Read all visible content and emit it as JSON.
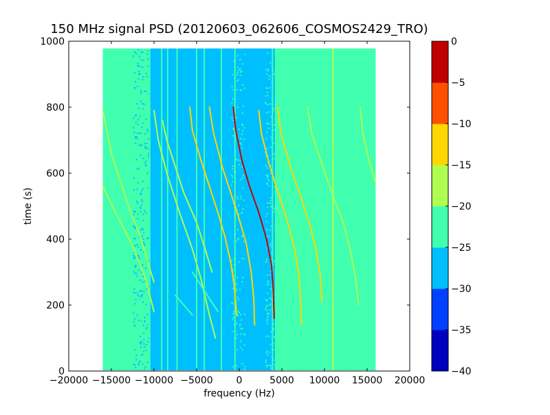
{
  "chart_data": {
    "type": "heatmap",
    "title": "150 MHz signal PSD (20120603_062606_COSMOS2429_TRO)",
    "xlabel": "frequency (Hz)",
    "ylabel": "time (s)",
    "xlim": [
      -20000,
      20000
    ],
    "ylim": [
      0,
      1000
    ],
    "x_ticks": [
      -20000,
      -15000,
      -10000,
      -5000,
      0,
      5000,
      10000,
      15000,
      20000
    ],
    "x_tick_labels": [
      "−20000",
      "−15000",
      "−10000",
      "−5000",
      "0",
      "5000",
      "10000",
      "15000",
      "20000"
    ],
    "y_ticks": [
      0,
      200,
      400,
      600,
      800,
      1000
    ],
    "y_tick_labels": [
      "0",
      "200",
      "400",
      "600",
      "800",
      "1000"
    ],
    "data_extent": {
      "x": [
        -16000,
        16000
      ],
      "y": [
        0,
        978
      ]
    },
    "colorbar": {
      "levels": [
        -40,
        -35,
        -30,
        -25,
        -20,
        -15,
        -10,
        -5,
        0
      ],
      "tick_labels": [
        "−40",
        "−35",
        "−30",
        "−25",
        "−20",
        "−15",
        "−10",
        "−5",
        "0"
      ],
      "colors": [
        "#0000bf",
        "#0040ff",
        "#00bfff",
        "#40ffaf",
        "#afff50",
        "#ffd700",
        "#ff5000",
        "#c00000"
      ]
    },
    "background_regions": [
      {
        "x": [
          -16000,
          -12500
        ],
        "level": -22.5
      },
      {
        "x": [
          -12500,
          -10500
        ],
        "level": -25
      },
      {
        "x": [
          -10500,
          200
        ],
        "level": -27.5
      },
      {
        "x": [
          200,
          4200
        ],
        "level": -26
      },
      {
        "x": [
          4200,
          16000
        ],
        "level": -22.5
      }
    ],
    "vertical_lines": [
      {
        "x": -10500,
        "level": -22.5
      },
      {
        "x": -9100,
        "level": -22.5
      },
      {
        "x": -8400,
        "level": -22.5
      },
      {
        "x": -7300,
        "level": -22.5
      },
      {
        "x": -5000,
        "level": -22.5
      },
      {
        "x": -4100,
        "level": -22.5
      },
      {
        "x": -2100,
        "level": -22.5
      },
      {
        "x": -500,
        "level": -22.5
      },
      {
        "x": 3900,
        "level": -22.5
      },
      {
        "x": 11000,
        "level": -17.5
      },
      {
        "x": 14200,
        "level": -22.5
      }
    ],
    "series": [
      {
        "level": -17.5,
        "points": [
          [
            -16000,
            790
          ],
          [
            -15000,
            660
          ],
          [
            -13000,
            500
          ],
          [
            -11500,
            400
          ],
          [
            -10500,
            310
          ],
          [
            -10000,
            270
          ]
        ]
      },
      {
        "level": -17.5,
        "points": [
          [
            -16000,
            560
          ],
          [
            -14500,
            480
          ],
          [
            -12500,
            380
          ],
          [
            -11000,
            280
          ],
          [
            -10000,
            180
          ]
        ]
      },
      {
        "level": -22.5,
        "points": [
          [
            -13500,
            350
          ],
          [
            -12500,
            300
          ],
          [
            -11800,
            240
          ],
          [
            -11200,
            180
          ]
        ]
      },
      {
        "level": -17.5,
        "points": [
          [
            -10000,
            790
          ],
          [
            -9500,
            700
          ],
          [
            -8500,
            600
          ],
          [
            -7000,
            480
          ],
          [
            -5500,
            370
          ],
          [
            -4500,
            280
          ],
          [
            -3500,
            170
          ],
          [
            -2800,
            100
          ]
        ]
      },
      {
        "level": -17.5,
        "points": [
          [
            -9000,
            760
          ],
          [
            -8500,
            700
          ],
          [
            -7500,
            620
          ],
          [
            -6500,
            540
          ],
          [
            -5000,
            450
          ],
          [
            -4000,
            370
          ],
          [
            -3200,
            300
          ]
        ]
      },
      {
        "level": -12.5,
        "points": [
          [
            -5800,
            800
          ],
          [
            -5500,
            730
          ],
          [
            -4500,
            640
          ],
          [
            -3500,
            560
          ],
          [
            -2500,
            480
          ],
          [
            -1700,
            410
          ],
          [
            -1000,
            330
          ],
          [
            -600,
            260
          ],
          [
            -300,
            170
          ]
        ]
      },
      {
        "level": -12.5,
        "points": [
          [
            -3500,
            800
          ],
          [
            -3000,
            720
          ],
          [
            -2000,
            620
          ],
          [
            -1000,
            540
          ],
          [
            0,
            460
          ],
          [
            800,
            390
          ],
          [
            1400,
            300
          ],
          [
            1700,
            220
          ],
          [
            1800,
            140
          ]
        ]
      },
      {
        "level": -22.5,
        "points": [
          [
            -5500,
            300
          ],
          [
            -4500,
            260
          ],
          [
            -3500,
            220
          ],
          [
            -2500,
            180
          ]
        ]
      },
      {
        "level": -22.5,
        "points": [
          [
            -7500,
            230
          ],
          [
            -6500,
            200
          ],
          [
            -5500,
            170
          ]
        ]
      },
      {
        "level": -2.5,
        "points": [
          [
            -700,
            800
          ],
          [
            -400,
            730
          ],
          [
            300,
            640
          ],
          [
            1200,
            560
          ],
          [
            2300,
            480
          ],
          [
            3200,
            400
          ],
          [
            3800,
            320
          ],
          [
            4000,
            240
          ],
          [
            4100,
            160
          ]
        ]
      },
      {
        "level": -12.5,
        "points": [
          [
            2300,
            790
          ],
          [
            2600,
            720
          ],
          [
            3600,
            620
          ],
          [
            4700,
            530
          ],
          [
            5700,
            450
          ],
          [
            6500,
            370
          ],
          [
            7000,
            290
          ],
          [
            7200,
            210
          ],
          [
            7300,
            140
          ]
        ]
      },
      {
        "level": -12.5,
        "points": [
          [
            4500,
            800
          ],
          [
            4900,
            720
          ],
          [
            6000,
            620
          ],
          [
            7200,
            530
          ],
          [
            8200,
            450
          ],
          [
            9000,
            370
          ],
          [
            9500,
            290
          ],
          [
            9700,
            210
          ]
        ]
      },
      {
        "level": -17.5,
        "points": [
          [
            8000,
            800
          ],
          [
            8500,
            720
          ],
          [
            9800,
            620
          ],
          [
            11000,
            530
          ],
          [
            12200,
            450
          ],
          [
            13000,
            370
          ],
          [
            13600,
            290
          ],
          [
            14000,
            200
          ]
        ]
      },
      {
        "level": -17.5,
        "points": [
          [
            14200,
            800
          ],
          [
            14500,
            720
          ],
          [
            15200,
            640
          ],
          [
            16000,
            570
          ]
        ]
      }
    ]
  }
}
